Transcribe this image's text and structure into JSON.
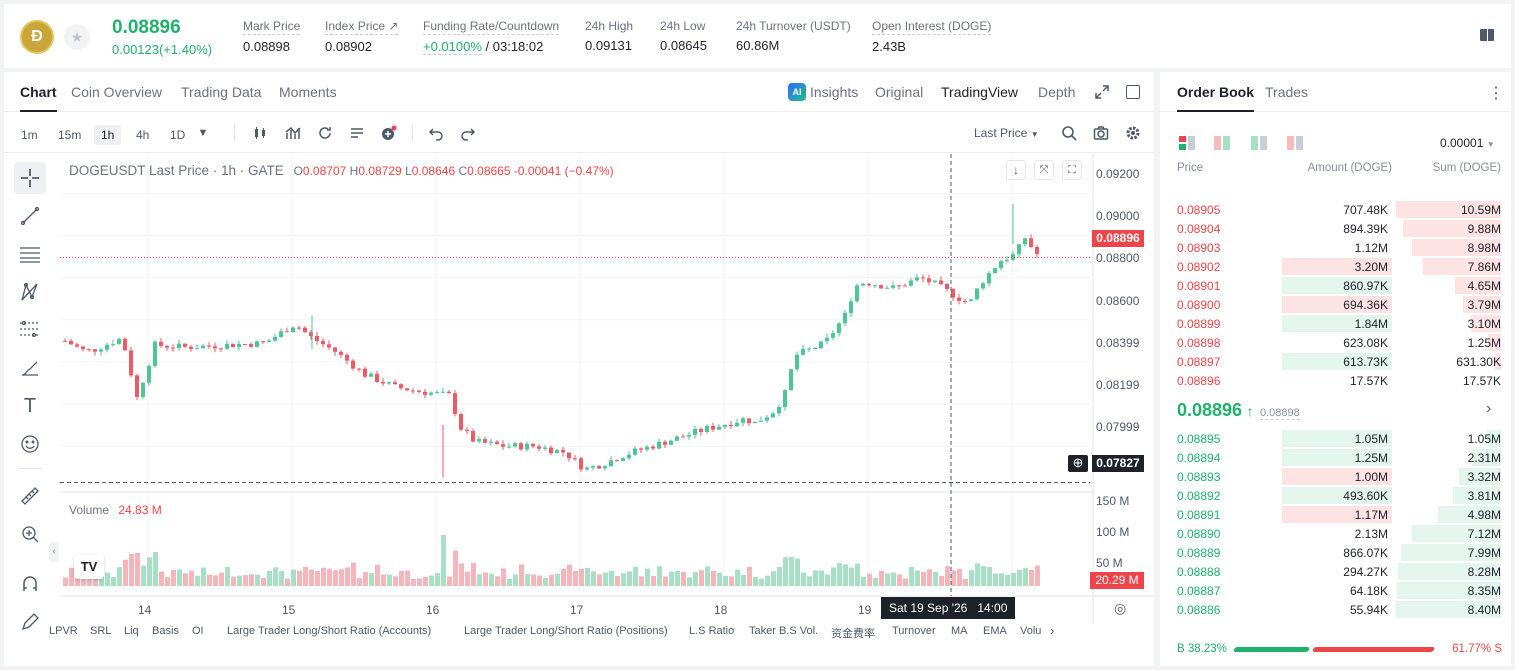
{
  "ticker": {
    "logo": "Ð",
    "last_price": "0.08896",
    "change": "0.00123(+1.40%)",
    "stats": [
      {
        "label": "Mark Price",
        "value": "0.08898"
      },
      {
        "label": "Index Price ↗",
        "value": "0.08902"
      },
      {
        "label": "Funding Rate/Countdown",
        "rate": "+0.0100%",
        "countdown": " / 03:18:02"
      },
      {
        "label": "24h High",
        "value": "0.09131"
      },
      {
        "label": "24h Low",
        "value": "0.08645"
      },
      {
        "label": "24h Turnover (USDT)",
        "value": "60.86M"
      },
      {
        "label": "Open Interest (DOGE)",
        "value": "2.43B"
      }
    ]
  },
  "chart_tabs": [
    "Chart",
    "Coin Overview",
    "Trading Data",
    "Moments"
  ],
  "view_tabs": {
    "insights": "Insights",
    "original": "Original",
    "tradingview": "TradingView",
    "depth": "Depth",
    "ai_badge": "AI"
  },
  "timeframes": [
    "1m",
    "15m",
    "1h",
    "4h",
    "1D"
  ],
  "price_source": "Last Price",
  "legend": {
    "title": "DOGEUSDT Last Price · 1h · GATE",
    "o_label": "O",
    "o": "0.08707",
    "h_label": "H",
    "h": "0.08729",
    "l_label": "L",
    "l": "0.08646",
    "c_label": "C",
    "c": "0.08665",
    "chg": "-0.00041 (−0.47%)"
  },
  "volume_legend": {
    "label": "Volume",
    "value": "24.83 M"
  },
  "price_axis": [
    "0.09200",
    "0.09000",
    "0.08800",
    "0.08600",
    "0.08399",
    "0.08199",
    "0.07999"
  ],
  "volume_axis": [
    "150 M",
    "100 M",
    "50 M"
  ],
  "current_price_tag": "0.08896",
  "crosshair_price_tag": "0.07827",
  "volume_tag": "20.29 M",
  "date_axis": [
    "14",
    "15",
    "16",
    "17",
    "18",
    "19"
  ],
  "crosshair_time": "Sat 19 Sep '26   14:00",
  "indicators": [
    "LPVR",
    "SRL",
    "Liq",
    "Basis",
    "OI",
    "Large Trader Long/Short Ratio (Accounts)",
    "Large Trader Long/Short Ratio (Positions)",
    "L.S Ratio",
    "Taker B.S Vol.",
    "资金费率",
    "Turnover",
    "MA",
    "EMA",
    "Volu"
  ],
  "tv_logo": "TV",
  "orderbook": {
    "tabs": [
      "Order Book",
      "Trades"
    ],
    "precision": "0.00001",
    "headers": {
      "price": "Price",
      "amount": "Amount (DOGE)",
      "sum": "Sum (DOGE)"
    },
    "asks": [
      {
        "price": "0.08905",
        "amount": "707.48K",
        "sum": "10.59M",
        "depth": 1.0,
        "hl": 0
      },
      {
        "price": "0.08904",
        "amount": "894.39K",
        "sum": "9.88M",
        "depth": 0.93,
        "hl": 0
      },
      {
        "price": "0.08903",
        "amount": "1.12M",
        "sum": "8.98M",
        "depth": 0.85,
        "hl": 0
      },
      {
        "price": "0.08902",
        "amount": "3.20M",
        "sum": "7.86M",
        "depth": 0.74,
        "hl": 1
      },
      {
        "price": "0.08901",
        "amount": "860.97K",
        "sum": "4.65M",
        "depth": 0.44,
        "hl": 2
      },
      {
        "price": "0.08900",
        "amount": "694.36K",
        "sum": "3.79M",
        "depth": 0.36,
        "hl": 1
      },
      {
        "price": "0.08899",
        "amount": "1.84M",
        "sum": "3.10M",
        "depth": 0.29,
        "hl": 2
      },
      {
        "price": "0.08898",
        "amount": "623.08K",
        "sum": "1.25M",
        "depth": 0.12,
        "hl": 0
      },
      {
        "price": "0.08897",
        "amount": "613.73K",
        "sum": "631.30K",
        "depth": 0.06,
        "hl": 2
      },
      {
        "price": "0.08896",
        "amount": "17.57K",
        "sum": "17.57K",
        "depth": 0.0,
        "hl": 0
      }
    ],
    "mid": {
      "price": "0.08896",
      "arrow": "↑",
      "mark": "0.08898"
    },
    "bids": [
      {
        "price": "0.08895",
        "amount": "1.05M",
        "sum": "1.05M",
        "depth": 0.13,
        "hl": 2
      },
      {
        "price": "0.08894",
        "amount": "1.25M",
        "sum": "2.31M",
        "depth": 0.28,
        "hl": 2
      },
      {
        "price": "0.08893",
        "amount": "1.00M",
        "sum": "3.32M",
        "depth": 0.4,
        "hl": 1
      },
      {
        "price": "0.08892",
        "amount": "493.60K",
        "sum": "3.81M",
        "depth": 0.46,
        "hl": 2
      },
      {
        "price": "0.08891",
        "amount": "1.17M",
        "sum": "4.98M",
        "depth": 0.6,
        "hl": 1
      },
      {
        "price": "0.08890",
        "amount": "2.13M",
        "sum": "7.12M",
        "depth": 0.85,
        "hl": 0
      },
      {
        "price": "0.08889",
        "amount": "866.07K",
        "sum": "7.99M",
        "depth": 0.95,
        "hl": 0
      },
      {
        "price": "0.08888",
        "amount": "294.27K",
        "sum": "8.28M",
        "depth": 0.98,
        "hl": 0
      },
      {
        "price": "0.08887",
        "amount": "64.18K",
        "sum": "8.35M",
        "depth": 0.99,
        "hl": 0
      },
      {
        "price": "0.08886",
        "amount": "55.94K",
        "sum": "8.40M",
        "depth": 1.0,
        "hl": 0
      }
    ],
    "ratio": {
      "buy": "B",
      "buy_pct": "38.23%",
      "sell_pct": "61.77%",
      "sell": "S",
      "buy_frac": 0.3823
    }
  },
  "colors": {
    "up": "#20b26c",
    "down": "#ef454a"
  }
}
